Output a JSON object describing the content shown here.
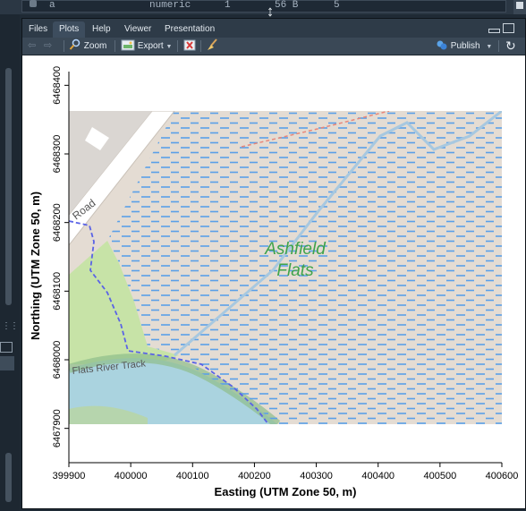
{
  "environment": {
    "row_name": "a",
    "row_type": "numeric",
    "row_length": "1",
    "row_size": "56 B",
    "row_value": "5"
  },
  "tabs": [
    {
      "label": "Files"
    },
    {
      "label": "Plots"
    },
    {
      "label": "Help"
    },
    {
      "label": "Viewer"
    },
    {
      "label": "Presentation"
    }
  ],
  "active_tab": "Plots",
  "toolbar": {
    "zoom_label": "Zoom",
    "export_label": "Export",
    "publish_label": "Publish"
  },
  "plot": {
    "xlabel": "Easting (UTM Zone 50, m)",
    "ylabel": "Northing (UTM Zone 50, m)",
    "x_ticks": [
      "399900",
      "400000",
      "400100",
      "400200",
      "400300",
      "400400",
      "400500",
      "400600"
    ],
    "y_ticks": [
      "6467900",
      "6468000",
      "6468100",
      "6468200",
      "6468300",
      "6468400"
    ],
    "map_labels": {
      "road": "Road",
      "wetland_line1": "Ashfield",
      "wetland_line2": "Flats",
      "track": "Flats River Track"
    },
    "colors": {
      "land": "#e4dcd3",
      "water": "#aad3df",
      "wetland_dash": "#5a9fe8",
      "grass": "#c7e3a7",
      "boundary": "#5a63e6",
      "label_green": "#3fa34b"
    }
  },
  "chart_data": {
    "type": "map",
    "xlim": [
      399900,
      400600
    ],
    "ylim": [
      6467850,
      6468420
    ],
    "xlabel": "Easting (UTM Zone 50, m)",
    "ylabel": "Northing (UTM Zone 50, m)",
    "grid": false
  }
}
